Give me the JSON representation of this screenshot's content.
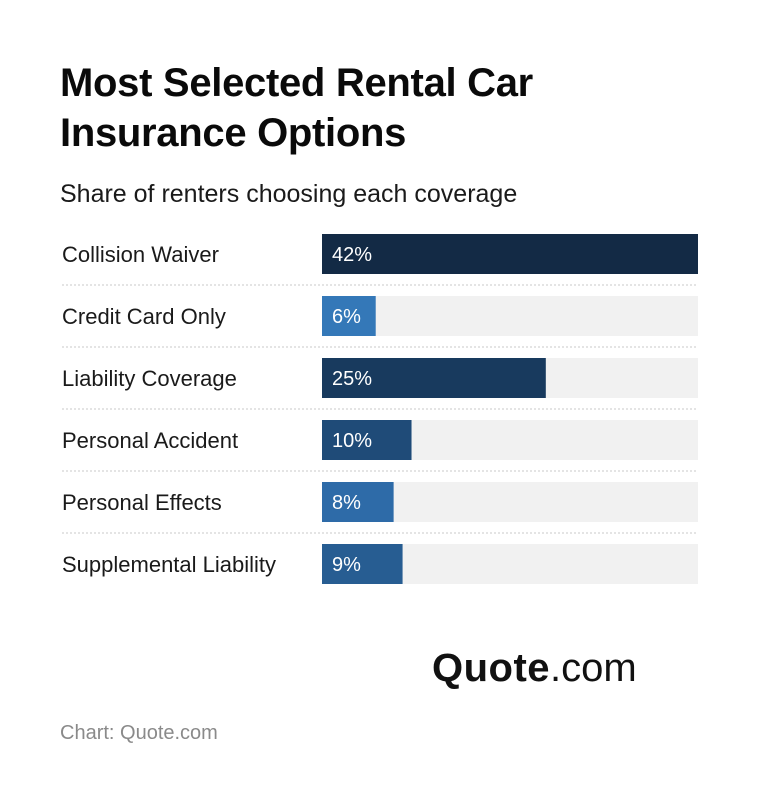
{
  "header": {
    "title": "Most Selected Rental Car Insurance Options",
    "subtitle": "Share of renters choosing each coverage"
  },
  "chart_data": {
    "type": "bar",
    "orientation": "horizontal",
    "categories": [
      "Collision Waiver",
      "Credit Card Only",
      "Liability Coverage",
      "Personal Accident",
      "Personal Effects",
      "Supplemental Liability"
    ],
    "values": [
      42,
      6,
      25,
      10,
      8,
      9
    ],
    "value_labels": [
      "42%",
      "6%",
      "25%",
      "10%",
      "8%",
      "9%"
    ],
    "xlim": [
      0,
      42
    ],
    "unit": "%",
    "grid": false,
    "legend": "none",
    "bar_colors": [
      "#132a45",
      "#3478b8",
      "#183a5e",
      "#1f4b78",
      "#2e6ba8",
      "#275d92"
    ],
    "track_color": "#f1f1f1"
  },
  "branding": {
    "logo_strong": "Quote",
    "logo_light": ".com"
  },
  "footer": {
    "source": "Chart: Quote.com"
  }
}
